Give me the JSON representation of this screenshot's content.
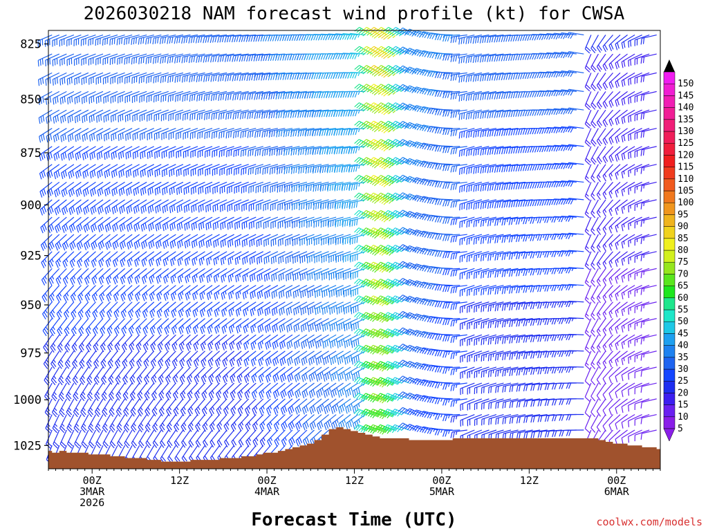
{
  "chart_data": {
    "type": "wind-barb-time-height",
    "title": "2026030218 NAM forecast wind profile (kt) for CWSA",
    "xlabel": "Forecast Time (UTC)",
    "ylabel": "",
    "units": "kt",
    "ylim": [
      1038,
      819
    ],
    "y_ticks": [
      825,
      850,
      875,
      900,
      925,
      950,
      975,
      1000,
      1025
    ],
    "x_range_hours": [
      -6,
      78
    ],
    "x_ticks": [
      {
        "hour": 0,
        "lines": [
          "00Z",
          "3MAR",
          "2026"
        ]
      },
      {
        "hour": 12,
        "lines": [
          "12Z"
        ]
      },
      {
        "hour": 24,
        "lines": [
          "00Z",
          "4MAR"
        ]
      },
      {
        "hour": 36,
        "lines": [
          "12Z"
        ]
      },
      {
        "hour": 48,
        "lines": [
          "00Z",
          "5MAR"
        ]
      },
      {
        "hour": 60,
        "lines": [
          "12Z"
        ]
      },
      {
        "hour": 72,
        "lines": [
          "00Z",
          "6MAR"
        ]
      }
    ],
    "colorbar": {
      "labels": [
        5,
        10,
        15,
        20,
        25,
        30,
        35,
        40,
        45,
        50,
        55,
        60,
        65,
        70,
        75,
        80,
        85,
        90,
        95,
        100,
        105,
        110,
        115,
        120,
        125,
        130,
        135,
        140,
        145,
        150
      ],
      "colors": [
        "#8a1ee8",
        "#6a20f0",
        "#3c1ef0",
        "#1e2ef0",
        "#1446ff",
        "#1e64f0",
        "#1e82f0",
        "#1ea0f0",
        "#1ec8e6",
        "#1ee6c8",
        "#1ee68c",
        "#1ee61e",
        "#5ae61e",
        "#96e61e",
        "#d2f01e",
        "#f0f01e",
        "#f0d21e",
        "#f0b41e",
        "#f0961e",
        "#f0781e",
        "#f05a1e",
        "#f03c1e",
        "#f01e1e",
        "#f01e3c",
        "#f01e5a",
        "#f01e78",
        "#f01e96",
        "#f01eb4",
        "#f01ed2",
        "#f01ef0"
      ]
    },
    "terrain": {
      "color": "#a0522d",
      "hours": [
        -6,
        -5,
        -4,
        -3,
        -2,
        -1,
        0,
        1,
        2,
        3,
        4,
        5,
        6,
        7,
        8,
        9,
        10,
        11,
        12,
        13,
        14,
        15,
        16,
        17,
        18,
        19,
        20,
        21,
        22,
        23,
        24,
        25,
        26,
        27,
        28,
        29,
        30,
        31,
        32,
        33,
        34,
        35,
        36,
        37,
        38,
        39,
        40,
        41,
        42,
        43,
        44,
        45,
        46,
        47,
        48,
        49,
        50,
        51,
        52,
        53,
        54,
        55,
        56,
        57,
        58,
        59,
        60,
        61,
        62,
        63,
        64,
        65,
        66,
        67,
        68,
        69,
        70,
        71,
        72,
        73,
        74,
        75,
        76,
        77,
        78
      ],
      "pressure_hpa": [
        1028,
        1029,
        1028,
        1029,
        1029,
        1029,
        1030,
        1030,
        1030,
        1031,
        1031,
        1032,
        1032,
        1032,
        1033,
        1033,
        1034,
        1034,
        1034,
        1034,
        1033,
        1033,
        1033,
        1033,
        1032,
        1032,
        1032,
        1031,
        1031,
        1030,
        1029,
        1029,
        1028,
        1027,
        1026,
        1025,
        1024,
        1022,
        1019,
        1016,
        1015,
        1016,
        1017,
        1018,
        1019,
        1020,
        1021,
        1021,
        1021,
        1021,
        1022,
        1022,
        1022,
        1022,
        1022,
        1022,
        1021,
        1021,
        1021,
        1021,
        1021,
        1021,
        1021,
        1021,
        1021,
        1021,
        1021,
        1021,
        1021,
        1021,
        1021,
        1021,
        1021,
        1021,
        1021,
        1021,
        1022,
        1023,
        1024,
        1024,
        1025,
        1025,
        1026,
        1026,
        1027
      ]
    },
    "wind_field_description": "Wind barbs every hour at 25 pressure levels from 1025 to 820 hPa, colored by speed (kt)"
  },
  "credit": "coolwx.com/models"
}
